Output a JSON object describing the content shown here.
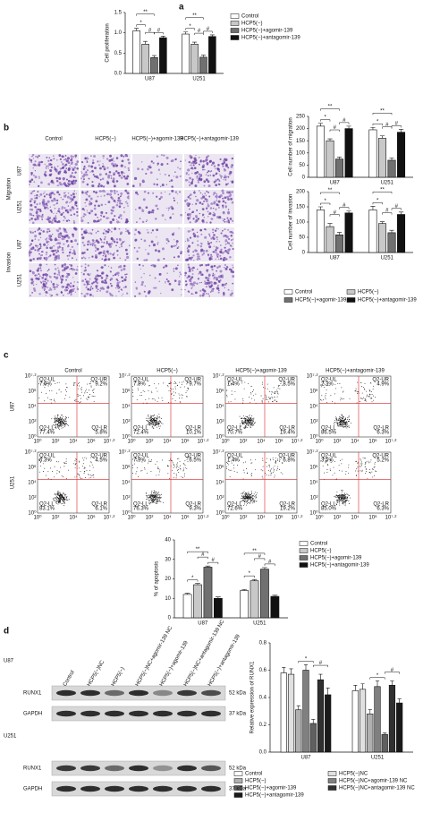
{
  "panel_labels": [
    "a",
    "b",
    "c",
    "d"
  ],
  "chart_data": [
    {
      "type": "bar",
      "y_label": "Cell proliferation",
      "categories": [
        "U87",
        "U251"
      ],
      "ylim": [
        0,
        1.5
      ],
      "yticks": [
        {
          "value": 0,
          "label": "0.0"
        },
        0.5,
        {
          "value": 1,
          "label": "1.0"
        },
        1.5
      ],
      "series": [
        {
          "name": "Control",
          "color": "#ffffff",
          "values": [
            1.05,
            0.97
          ],
          "errors": [
            0.06,
            0.05
          ]
        },
        {
          "name": "HCP5(−)",
          "color": "#c8c8c8",
          "values": [
            0.72,
            0.72
          ],
          "errors": [
            0.07,
            0.05
          ]
        },
        {
          "name": "HCP5(−)+agomir-139",
          "color": "#707070",
          "values": [
            0.39,
            0.4
          ],
          "errors": [
            0.05,
            0.05
          ]
        },
        {
          "name": "HCP5(−)+antagomir-139",
          "color": "#111111",
          "values": [
            0.88,
            0.91
          ],
          "errors": [
            0.04,
            0.04
          ]
        }
      ],
      "annotations": [
        [
          "**",
          "*",
          "#",
          "#"
        ],
        [
          "**",
          "*",
          "#",
          "#"
        ]
      ]
    },
    {
      "type": "bar",
      "y_label": "Cell number of migration",
      "categories": [
        "U87",
        "U251"
      ],
      "ylim": [
        0,
        250
      ],
      "yticks": [
        0,
        50,
        100,
        150,
        200,
        250
      ],
      "series": [
        {
          "color": "#ffffff",
          "values": [
            210,
            195
          ],
          "errors": [
            12,
            10
          ]
        },
        {
          "color": "#c8c8c8",
          "values": [
            150,
            160
          ],
          "errors": [
            8,
            10
          ]
        },
        {
          "color": "#707070",
          "values": [
            75,
            70
          ],
          "errors": [
            8,
            10
          ]
        },
        {
          "color": "#111111",
          "values": [
            200,
            185
          ],
          "errors": [
            10,
            12
          ]
        }
      ],
      "annotations": [
        [
          "**",
          "*",
          "#",
          "#"
        ],
        [
          "**",
          "*",
          "#",
          "#"
        ]
      ]
    },
    {
      "type": "bar",
      "y_label": "Cell number of invasion",
      "categories": [
        "U87",
        "U251"
      ],
      "ylim": [
        0,
        200
      ],
      "yticks": [
        0,
        50,
        100,
        150,
        200
      ],
      "series": [
        {
          "name": "Control",
          "color": "#ffffff",
          "values": [
            140,
            140
          ],
          "errors": [
            10,
            12
          ]
        },
        {
          "name": "HCP5(−)",
          "color": "#c8c8c8",
          "values": [
            85,
            95
          ],
          "errors": [
            10,
            6
          ]
        },
        {
          "name": "HCP5(−)+agomir-139",
          "color": "#707070",
          "values": [
            58,
            65
          ],
          "errors": [
            8,
            8
          ]
        },
        {
          "name": "HCP5(−)+antagomir-139",
          "color": "#111111",
          "values": [
            130,
            125
          ],
          "errors": [
            6,
            8
          ]
        }
      ],
      "annotations": [
        [
          "**",
          "*",
          "#",
          "#"
        ],
        [
          "**",
          "*",
          "#",
          "#"
        ]
      ]
    },
    {
      "type": "bar",
      "y_label": "% of apoptosis",
      "categories": [
        "U87",
        "U251"
      ],
      "ylim": [
        0,
        40
      ],
      "yticks": [
        0,
        10,
        20,
        30,
        40
      ],
      "series": [
        {
          "name": "Control",
          "color": "#ffffff",
          "values": [
            12,
            14
          ],
          "errors": [
            0.6,
            0.6
          ]
        },
        {
          "name": "HCP5(−)",
          "color": "#c8c8c8",
          "values": [
            17,
            19
          ],
          "errors": [
            0.6,
            0.7
          ]
        },
        {
          "name": "HCP5(−)+agomir-139",
          "color": "#707070",
          "values": [
            26,
            25
          ],
          "errors": [
            0.6,
            0.8
          ]
        },
        {
          "name": "HCP5(−)+antagomir-139",
          "color": "#111111",
          "values": [
            10,
            11
          ],
          "errors": [
            0.7,
            0.6
          ]
        }
      ],
      "annotations": [
        [
          "**",
          "*",
          "#",
          "#"
        ],
        [
          "**",
          "*",
          "#",
          "#"
        ]
      ]
    },
    {
      "type": "bar",
      "y_label": "Relative expression of RUNX1",
      "categories": [
        "U87",
        "U251"
      ],
      "ylim": [
        0,
        0.8
      ],
      "yticks": [
        {
          "value": 0,
          "label": "0.0"
        },
        0.2,
        0.4,
        0.6,
        0.8
      ],
      "series": [
        {
          "name": "Control",
          "color": "#ffffff",
          "values": [
            0.58,
            0.45
          ],
          "errors": [
            0.04,
            0.04
          ]
        },
        {
          "name": "HCP5(−)NC",
          "color": "#e0e0e0",
          "values": [
            0.57,
            0.46
          ],
          "errors": [
            0.04,
            0.04
          ]
        },
        {
          "name": "HCP5(−)",
          "color": "#b0b0b0",
          "values": [
            0.31,
            0.28
          ],
          "errors": [
            0.03,
            0.03
          ]
        },
        {
          "name": "HCP5(−)NC+agomir-139 NC",
          "color": "#808080",
          "values": [
            0.6,
            0.48
          ],
          "errors": [
            0.04,
            0.04
          ]
        },
        {
          "name": "HCP5(−)+agomir-139",
          "color": "#606060",
          "values": [
            0.21,
            0.13
          ],
          "errors": [
            0.03,
            0.01
          ]
        },
        {
          "name": "HCP5(−)NC+antagomir-139 NC",
          "color": "#303030",
          "values": [
            0.53,
            0.49
          ],
          "errors": [
            0.04,
            0.03
          ]
        },
        {
          "name": "HCP5(−)+antagomir-139",
          "color": "#1a1a1a",
          "values": [
            0.42,
            0.36
          ],
          "errors": [
            0.05,
            0.03
          ]
        }
      ],
      "annotations": [
        [
          "*",
          "#"
        ],
        [
          "*",
          "#"
        ]
      ]
    }
  ],
  "images": {
    "columns": [
      "Control",
      "HCP5(−)",
      "HCP5(−)+agomir-139",
      "HCP5(−)+antagomir-139"
    ],
    "groups": [
      "Migration",
      "Invasion"
    ],
    "rows": [
      "U87",
      "U251"
    ]
  },
  "flow": {
    "columns": [
      "Control",
      "HCP5(−)",
      "HCP5(−)+agomir-139",
      "HCP5(−)+antagomir-139"
    ],
    "rows": [
      "U87",
      "U251"
    ],
    "quadrants": [
      "Q2-UL",
      "Q2-UR",
      "Q2-LL",
      "Q2-LR"
    ],
    "ticks": [
      "10⁰",
      "10²",
      "10⁴",
      "10⁶",
      "10⁷·²"
    ],
    "percentages": [
      [
        [
          "7.6%",
          "9.2%",
          "77.4%",
          "5.8%"
        ],
        [
          "7.8%",
          "9.7%",
          "72.4%",
          "10.1%"
        ],
        [
          "1.4%",
          "8.5%",
          "70.7%",
          "19.4%"
        ],
        [
          "2.3%",
          "4.9%",
          "86.5%",
          "6.3%"
        ]
      ],
      [
        [
          "6.3%",
          "4.5%",
          "83.1%",
          "6.1%"
        ],
        [
          "7.9%",
          "6.5%",
          "76.3%",
          "9.3%"
        ],
        [
          "1.4%",
          "6.8%",
          "72.6%",
          "19.2%"
        ],
        [
          "3.5%",
          "5.2%",
          "85.0%",
          "6.3%"
        ]
      ]
    ]
  },
  "blot": {
    "lanes": [
      "Control",
      "HCP5(−)NC",
      "HCP5(−)",
      "HCP5(−)NC+agomir-139 NC",
      "HCP5(−)+agomir-139",
      "HCP5(−)NC+antagomir-139 NC",
      "HCP5(−)+antagomir-139"
    ],
    "cell_lines": [
      "U87",
      "U251"
    ],
    "proteins": [
      "RUNX1",
      "GAPDH"
    ],
    "sizes": [
      "52 kDa",
      "37 kDa"
    ]
  }
}
